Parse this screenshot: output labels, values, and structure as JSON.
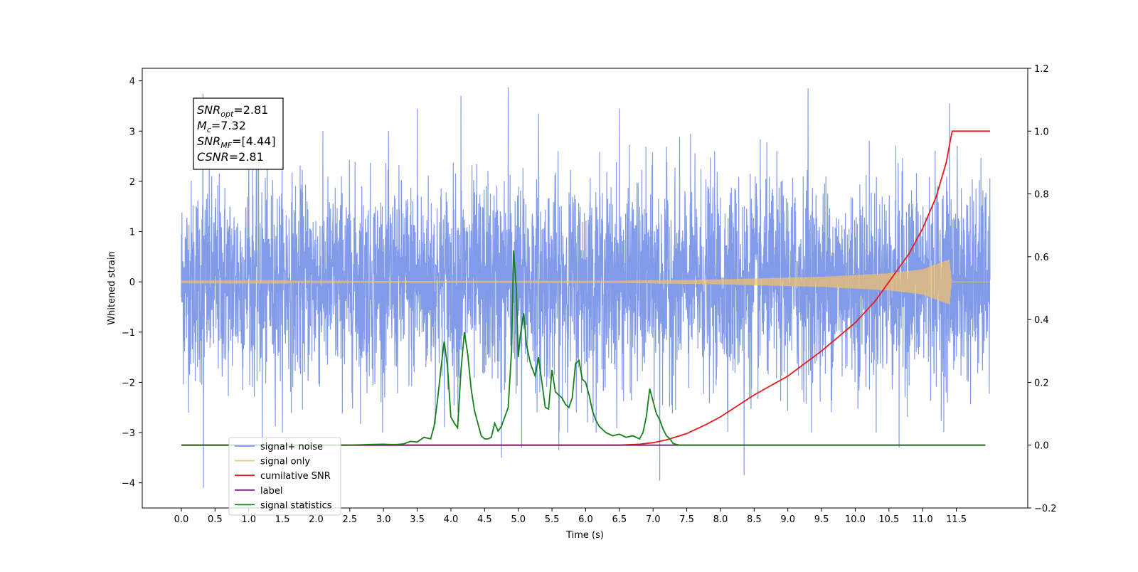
{
  "chart_data": {
    "type": "line",
    "title": "",
    "xlabel": "Time (s)",
    "ylabel": "Whitened strain",
    "xlim": [
      -0.58,
      12.56
    ],
    "ylim": [
      -4.5,
      4.25
    ],
    "y2lim": [
      -0.2,
      1.2
    ],
    "grid": false,
    "legend_position": "lower-left",
    "x_ticks": [
      0.0,
      0.5,
      1.0,
      1.5,
      2.0,
      2.5,
      3.0,
      3.5,
      4.0,
      4.5,
      5.0,
      5.5,
      6.0,
      6.5,
      7.0,
      7.5,
      8.0,
      8.5,
      9.0,
      9.5,
      10.0,
      10.5,
      11.0,
      11.5
    ],
    "x_tick_labels": [
      "0.0",
      "0.5",
      "1.0",
      "1.5",
      "2.0",
      "2.5",
      "3.0",
      "3.5",
      "4.0",
      "4.5",
      "5.0",
      "5.5",
      "6.0",
      "6.5",
      "7.0",
      "7.5",
      "8.0",
      "8.5",
      "9.0",
      "9.5",
      "10.0",
      "10.5",
      "11.0",
      "11.5"
    ],
    "y_ticks": [
      -4,
      -3,
      -2,
      -1,
      0,
      1,
      2,
      3,
      4
    ],
    "y_tick_labels": [
      "−4",
      "−3",
      "−2",
      "−1",
      "0",
      "1",
      "2",
      "3",
      "4"
    ],
    "y2_ticks": [
      -0.2,
      0.0,
      0.2,
      0.4,
      0.6,
      0.8,
      1.0,
      1.2
    ],
    "y2_tick_labels": [
      "−0.2",
      "0.0",
      "0.2",
      "0.4",
      "0.6",
      "0.8",
      "1.0",
      "1.2"
    ],
    "annotation": {
      "lines": [
        {
          "base": "SNR",
          "sub": "opt",
          "value": "=2.81"
        },
        {
          "base": "M",
          "sub": "c",
          "value": "=7.32"
        },
        {
          "base": "SNR",
          "sub": "MF",
          "value": "=[4.44]"
        },
        {
          "base": "CSNR",
          "sub": "",
          "value": "=2.81"
        }
      ]
    },
    "series": [
      {
        "name": "signal+ noise",
        "color": "#7b96e8",
        "axis": "left",
        "kind": "noise",
        "x_range": [
          0.0,
          12.0
        ],
        "typical_amplitude": 1.6,
        "spikes": [
          {
            "x": 0.32,
            "y": 3.75
          },
          {
            "x": 0.33,
            "y": -4.1
          },
          {
            "x": 1.0,
            "y": 3.3
          },
          {
            "x": 1.2,
            "y": -3.4
          },
          {
            "x": 3.5,
            "y": 3.45
          },
          {
            "x": 4.15,
            "y": 3.7
          },
          {
            "x": 4.75,
            "y": -3.5
          },
          {
            "x": 4.85,
            "y": 3.87
          },
          {
            "x": 5.05,
            "y": -3.3
          },
          {
            "x": 5.3,
            "y": 3.35
          },
          {
            "x": 5.6,
            "y": -3.35
          },
          {
            "x": 6.5,
            "y": 3.45
          },
          {
            "x": 7.1,
            "y": -3.95
          },
          {
            "x": 8.35,
            "y": -3.85
          },
          {
            "x": 9.3,
            "y": 3.85
          },
          {
            "x": 10.65,
            "y": -3.3
          },
          {
            "x": 11.4,
            "y": 3.55
          }
        ]
      },
      {
        "name": "signal only",
        "color": "#f5c266",
        "axis": "left",
        "kind": "chirp",
        "x_range": [
          0.0,
          12.0
        ],
        "envelope": [
          [
            0.0,
            0.01
          ],
          [
            6.5,
            0.02
          ],
          [
            8.0,
            0.05
          ],
          [
            9.5,
            0.1
          ],
          [
            10.5,
            0.17
          ],
          [
            11.0,
            0.25
          ],
          [
            11.4,
            0.45
          ],
          [
            11.43,
            0.0
          ],
          [
            12.0,
            0.0
          ]
        ]
      },
      {
        "name": "cumilative SNR",
        "color": "#e8191b",
        "axis": "right",
        "x": [
          0.0,
          6.0,
          6.5,
          6.8,
          7.0,
          7.2,
          7.5,
          7.8,
          8.0,
          8.5,
          9.0,
          9.5,
          10.0,
          10.3,
          10.5,
          10.8,
          11.0,
          11.2,
          11.35,
          11.42,
          11.44,
          12.0
        ],
        "values": [
          0.0,
          0.0,
          0.0,
          0.003,
          0.008,
          0.017,
          0.037,
          0.067,
          0.09,
          0.16,
          0.22,
          0.3,
          0.39,
          0.46,
          0.52,
          0.61,
          0.69,
          0.79,
          0.9,
          0.98,
          1.0,
          1.0
        ]
      },
      {
        "name": "label",
        "color": "#7a1a7a",
        "axis": "right",
        "x": [
          0.0,
          11.93
        ],
        "values": [
          0.0,
          0.0
        ]
      },
      {
        "name": "signal statistics",
        "color": "#13801a",
        "axis": "right",
        "x": [
          0.0,
          2.5,
          2.8,
          3.0,
          3.1,
          3.2,
          3.3,
          3.4,
          3.5,
          3.6,
          3.7,
          3.75,
          3.8,
          3.85,
          3.9,
          3.95,
          4.0,
          4.05,
          4.1,
          4.15,
          4.2,
          4.25,
          4.3,
          4.35,
          4.4,
          4.45,
          4.5,
          4.55,
          4.6,
          4.65,
          4.7,
          4.75,
          4.8,
          4.85,
          4.9,
          4.93,
          4.97,
          5.0,
          5.03,
          5.08,
          5.12,
          5.18,
          5.25,
          5.3,
          5.35,
          5.4,
          5.45,
          5.5,
          5.55,
          5.6,
          5.65,
          5.7,
          5.75,
          5.8,
          5.85,
          5.9,
          5.95,
          6.0,
          6.05,
          6.1,
          6.15,
          6.2,
          6.3,
          6.4,
          6.5,
          6.6,
          6.7,
          6.8,
          6.85,
          6.9,
          6.95,
          7.0,
          7.05,
          7.1,
          7.15,
          7.2,
          7.25,
          7.3,
          7.35,
          7.4,
          7.5,
          7.7,
          8.0,
          9.0,
          9.7,
          10.0,
          11.0,
          11.93
        ],
        "values": [
          0.0,
          0.0,
          0.002,
          0.003,
          0.002,
          0.002,
          0.004,
          0.012,
          0.01,
          0.025,
          0.02,
          0.06,
          0.14,
          0.24,
          0.33,
          0.25,
          0.09,
          0.07,
          0.055,
          0.24,
          0.36,
          0.29,
          0.18,
          0.11,
          0.07,
          0.03,
          0.02,
          0.02,
          0.025,
          0.07,
          0.045,
          0.06,
          0.09,
          0.12,
          0.3,
          0.62,
          0.5,
          0.28,
          0.35,
          0.42,
          0.32,
          0.26,
          0.22,
          0.28,
          0.2,
          0.12,
          0.115,
          0.24,
          0.17,
          0.16,
          0.15,
          0.13,
          0.12,
          0.15,
          0.26,
          0.27,
          0.21,
          0.2,
          0.16,
          0.11,
          0.08,
          0.06,
          0.04,
          0.03,
          0.035,
          0.025,
          0.03,
          0.02,
          0.04,
          0.09,
          0.18,
          0.14,
          0.1,
          0.08,
          0.05,
          0.03,
          0.02,
          0.005,
          0.002,
          0.0,
          0.0,
          0.0,
          0.0,
          0.0,
          0.0,
          0.0,
          0.0,
          0.0
        ]
      }
    ],
    "legend_entries": [
      {
        "label": "signal+ noise",
        "color": "#7b96e8"
      },
      {
        "label": "signal only",
        "color": "#f5c266"
      },
      {
        "label": "cumilative SNR",
        "color": "#e8191b"
      },
      {
        "label": "label",
        "color": "#7a1a7a"
      },
      {
        "label": "signal statistics",
        "color": "#13801a"
      }
    ]
  }
}
